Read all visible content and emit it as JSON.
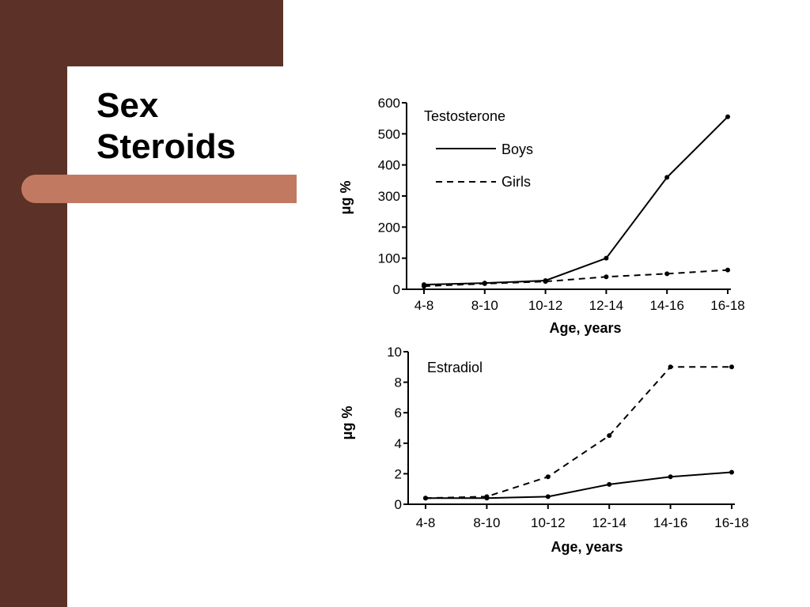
{
  "slide": {
    "title_line1": "Sex",
    "title_line2": "Steroids",
    "colors": {
      "background_band": "#5c3127",
      "accent_bar": "#c17962",
      "page": "#ffffff"
    }
  },
  "chart_data": [
    {
      "type": "line",
      "title": "Testosterone",
      "categories": [
        "4-8",
        "8-10",
        "10-12",
        "12-14",
        "14-16",
        "16-18"
      ],
      "xlabel": "Age, years",
      "ylabel": "μg %",
      "ylim": [
        0,
        600
      ],
      "yticks": [
        "0",
        "100",
        "200",
        "300",
        "400",
        "500",
        "600"
      ],
      "legend": "top-left",
      "grid": false,
      "series": [
        {
          "name": "Boys",
          "style": "solid",
          "values": [
            15,
            20,
            28,
            100,
            360,
            555
          ]
        },
        {
          "name": "Girls",
          "style": "dashed",
          "values": [
            10,
            18,
            25,
            40,
            50,
            62
          ]
        }
      ]
    },
    {
      "type": "line",
      "title": "Estradiol",
      "categories": [
        "4-8",
        "8-10",
        "10-12",
        "12-14",
        "14-16",
        "16-18"
      ],
      "xlabel": "Age, years",
      "ylabel": "μg %",
      "ylim": [
        0,
        10
      ],
      "yticks": [
        "0",
        "2",
        "4",
        "6",
        "8",
        "10"
      ],
      "grid": false,
      "series": [
        {
          "style": "solid",
          "values": [
            0.4,
            0.4,
            0.5,
            1.3,
            1.8,
            2.1
          ]
        },
        {
          "style": "dashed",
          "values": [
            0.4,
            0.5,
            1.8,
            4.5,
            9.0,
            9.0
          ]
        }
      ]
    }
  ]
}
